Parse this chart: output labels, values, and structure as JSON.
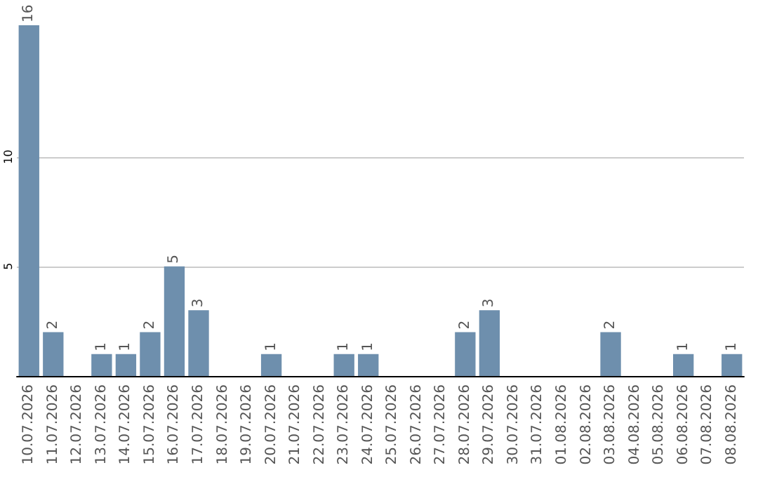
{
  "chart_data": {
    "type": "bar",
    "categories": [
      "10.07.2026",
      "11.07.2026",
      "12.07.2026",
      "13.07.2026",
      "14.07.2026",
      "15.07.2026",
      "16.07.2026",
      "17.07.2026",
      "18.07.2026",
      "19.07.2026",
      "20.07.2026",
      "21.07.2026",
      "22.07.2026",
      "23.07.2026",
      "24.07.2026",
      "25.07.2026",
      "26.07.2026",
      "27.07.2026",
      "28.07.2026",
      "29.07.2026",
      "30.07.2026",
      "31.07.2026",
      "01.08.2026",
      "02.08.2026",
      "03.08.2026",
      "04.08.2026",
      "05.08.2026",
      "06.08.2026",
      "07.08.2026",
      "08.08.2026"
    ],
    "values": [
      16,
      2,
      0,
      1,
      1,
      2,
      5,
      3,
      0,
      0,
      1,
      0,
      0,
      1,
      1,
      0,
      0,
      0,
      2,
      3,
      0,
      0,
      0,
      0,
      2,
      0,
      0,
      1,
      0,
      1
    ],
    "value_labels": [
      "16",
      "2",
      null,
      "1",
      "1",
      "2",
      "5",
      "3",
      null,
      null,
      "1",
      null,
      null,
      "1",
      "1",
      null,
      null,
      null,
      "2",
      "3",
      null,
      null,
      null,
      null,
      "2",
      null,
      null,
      "1",
      null,
      "1"
    ],
    "color": "#6e8fad",
    "ylim": [
      0,
      16
    ],
    "yticks": [
      5,
      10
    ],
    "grid": "y"
  }
}
